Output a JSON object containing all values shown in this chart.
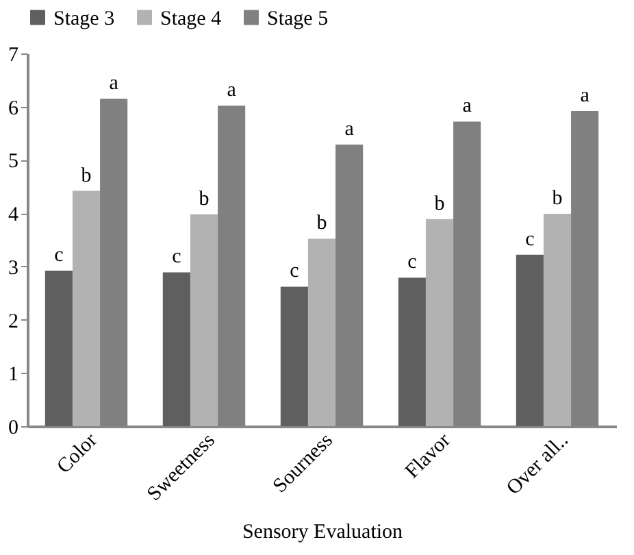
{
  "chart_data": {
    "type": "bar",
    "xlabel": "Sensory Evaluation",
    "categories": [
      "Color",
      "Sweetness",
      "Sourness",
      "Flavor",
      "Over all.."
    ],
    "series": [
      {
        "name": "Stage 3",
        "color": "#5f5f5f",
        "values": [
          2.92,
          2.89,
          2.62,
          2.79,
          3.22
        ],
        "value_labels": [
          "c",
          "c",
          "c",
          "c",
          "c"
        ]
      },
      {
        "name": "Stage 4",
        "color": "#b2b2b2",
        "values": [
          4.42,
          3.98,
          3.52,
          3.89,
          3.99
        ],
        "value_labels": [
          "b",
          "b",
          "b",
          "b",
          "b"
        ]
      },
      {
        "name": "Stage 5",
        "color": "#808080",
        "values": [
          6.15,
          6.02,
          5.29,
          5.72,
          5.92
        ],
        "value_labels": [
          "a",
          "a",
          "a",
          "a",
          "a"
        ]
      }
    ],
    "ylim": [
      0,
      7
    ],
    "yticks": [
      0,
      1,
      2,
      3,
      4,
      5,
      6,
      7
    ],
    "grid": false,
    "legend": "top"
  }
}
